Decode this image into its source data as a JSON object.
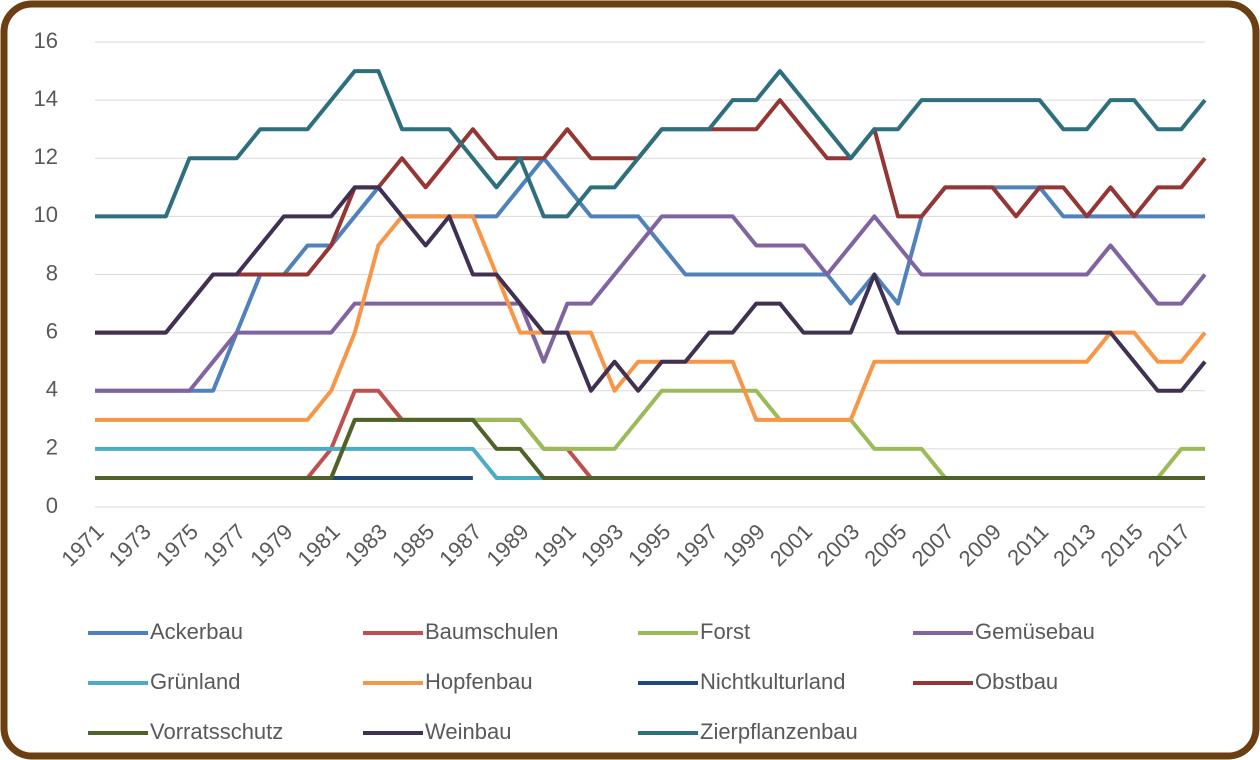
{
  "chart_data": {
    "type": "line",
    "x": [
      1971,
      1972,
      1973,
      1974,
      1975,
      1976,
      1977,
      1978,
      1979,
      1980,
      1981,
      1982,
      1983,
      1984,
      1985,
      1986,
      1987,
      1988,
      1989,
      1990,
      1991,
      1992,
      1993,
      1994,
      1995,
      1996,
      1997,
      1998,
      1999,
      2000,
      2001,
      2002,
      2003,
      2004,
      2005,
      2006,
      2007,
      2008,
      2009,
      2010,
      2011,
      2012,
      2013,
      2014,
      2015,
      2016,
      2017,
      2018
    ],
    "xlim": [
      1971,
      2018
    ],
    "xticks": [
      1971,
      1973,
      1975,
      1977,
      1979,
      1981,
      1983,
      1985,
      1987,
      1989,
      1991,
      1993,
      1995,
      1997,
      1999,
      2001,
      2003,
      2005,
      2007,
      2009,
      2011,
      2013,
      2015,
      2017
    ],
    "ylim": [
      0,
      16
    ],
    "yticks": [
      0,
      2,
      4,
      6,
      8,
      10,
      12,
      14,
      16
    ],
    "grid": true,
    "legend": "bottom",
    "series": [
      {
        "name": "Ackerbau",
        "color": "#4f81bd",
        "values": [
          4,
          4,
          4,
          4,
          4,
          4,
          6,
          8,
          8,
          9,
          9,
          10,
          11,
          10,
          10,
          10,
          10,
          10,
          11,
          12,
          11,
          10,
          10,
          10,
          9,
          8,
          8,
          8,
          8,
          8,
          8,
          8,
          7,
          8,
          7,
          10,
          11,
          11,
          11,
          11,
          11,
          10,
          10,
          10,
          10,
          10,
          10,
          10
        ]
      },
      {
        "name": "Baumschulen",
        "color": "#c0504d",
        "values": [
          1,
          1,
          1,
          1,
          1,
          1,
          1,
          1,
          1,
          1,
          2,
          4,
          4,
          3,
          3,
          3,
          3,
          3,
          3,
          2,
          2,
          1,
          1,
          1,
          1,
          1,
          1,
          1,
          1,
          1,
          1,
          1,
          1,
          1,
          1,
          1,
          1,
          1,
          1,
          1,
          1,
          1,
          1,
          1,
          1,
          1,
          1,
          1
        ]
      },
      {
        "name": "Forst",
        "color": "#9bbb59",
        "values": [
          1,
          1,
          1,
          1,
          1,
          1,
          1,
          1,
          1,
          1,
          1,
          3,
          3,
          3,
          3,
          3,
          3,
          3,
          3,
          2,
          2,
          2,
          2,
          3,
          4,
          4,
          4,
          4,
          4,
          3,
          3,
          3,
          3,
          2,
          2,
          2,
          1,
          1,
          1,
          1,
          1,
          1,
          1,
          1,
          1,
          1,
          2,
          2
        ]
      },
      {
        "name": "Gemüsebau",
        "color": "#8064a2",
        "values": [
          4,
          4,
          4,
          4,
          4,
          5,
          6,
          6,
          6,
          6,
          6,
          7,
          7,
          7,
          7,
          7,
          7,
          7,
          7,
          5,
          7,
          7,
          8,
          9,
          10,
          10,
          10,
          10,
          9,
          9,
          9,
          8,
          9,
          10,
          9,
          8,
          8,
          8,
          8,
          8,
          8,
          8,
          8,
          9,
          8,
          7,
          7,
          8
        ]
      },
      {
        "name": "Grünland",
        "color": "#4bacc6",
        "values": [
          2,
          2,
          2,
          2,
          2,
          2,
          2,
          2,
          2,
          2,
          2,
          2,
          2,
          2,
          2,
          2,
          2,
          1,
          1,
          1,
          1,
          1,
          1,
          1,
          1,
          1,
          1,
          1,
          1,
          1,
          1,
          1,
          1,
          1,
          1,
          1,
          1,
          1,
          1,
          1,
          1,
          1,
          1,
          1,
          1,
          1,
          1,
          1
        ]
      },
      {
        "name": "Hopfenbau",
        "color": "#f79646",
        "values": [
          3,
          3,
          3,
          3,
          3,
          3,
          3,
          3,
          3,
          3,
          4,
          6,
          9,
          10,
          10,
          10,
          10,
          8,
          6,
          6,
          6,
          6,
          4,
          5,
          5,
          5,
          5,
          5,
          3,
          3,
          3,
          3,
          3,
          5,
          5,
          5,
          5,
          5,
          5,
          5,
          5,
          5,
          5,
          6,
          6,
          5,
          5,
          6
        ]
      },
      {
        "name": "Nichtkulturland",
        "color": "#1f497d",
        "values": [
          null,
          null,
          null,
          null,
          null,
          null,
          null,
          null,
          null,
          null,
          1,
          1,
          1,
          1,
          1,
          1,
          1,
          null,
          null,
          null,
          null,
          null,
          null,
          null,
          null,
          null,
          null,
          null,
          null,
          null,
          null,
          null,
          null,
          null,
          null,
          null,
          null,
          null,
          null,
          null,
          null,
          null,
          null,
          null,
          null,
          null,
          null,
          null
        ]
      },
      {
        "name": "Obstbau",
        "color": "#943634",
        "values": [
          6,
          6,
          6,
          6,
          7,
          8,
          8,
          8,
          8,
          8,
          9,
          11,
          11,
          12,
          11,
          12,
          13,
          12,
          12,
          12,
          13,
          12,
          12,
          12,
          13,
          13,
          13,
          13,
          13,
          14,
          13,
          12,
          12,
          13,
          10,
          10,
          11,
          11,
          11,
          10,
          11,
          11,
          10,
          11,
          10,
          11,
          11,
          12
        ]
      },
      {
        "name": "Vorratsschutz",
        "color": "#4f6228",
        "values": [
          1,
          1,
          1,
          1,
          1,
          1,
          1,
          1,
          1,
          1,
          1,
          3,
          3,
          3,
          3,
          3,
          3,
          2,
          2,
          1,
          1,
          1,
          1,
          1,
          1,
          1,
          1,
          1,
          1,
          1,
          1,
          1,
          1,
          1,
          1,
          1,
          1,
          1,
          1,
          1,
          1,
          1,
          1,
          1,
          1,
          1,
          1,
          1
        ]
      },
      {
        "name": "Weinbau",
        "color": "#403152",
        "values": [
          6,
          6,
          6,
          6,
          7,
          8,
          8,
          9,
          10,
          10,
          10,
          11,
          11,
          10,
          9,
          10,
          8,
          8,
          7,
          6,
          6,
          4,
          5,
          4,
          5,
          5,
          6,
          6,
          7,
          7,
          6,
          6,
          6,
          8,
          6,
          6,
          6,
          6,
          6,
          6,
          6,
          6,
          6,
          6,
          5,
          4,
          4,
          5
        ]
      },
      {
        "name": "Zierpflanzenbau",
        "color": "#2e6f7e",
        "values": [
          10,
          10,
          10,
          10,
          12,
          12,
          12,
          13,
          13,
          13,
          14,
          15,
          15,
          13,
          13,
          13,
          12,
          11,
          12,
          10,
          10,
          11,
          11,
          12,
          13,
          13,
          13,
          14,
          14,
          15,
          14,
          13,
          12,
          13,
          13,
          14,
          14,
          14,
          14,
          14,
          14,
          13,
          13,
          14,
          14,
          13,
          13,
          14
        ]
      }
    ]
  }
}
